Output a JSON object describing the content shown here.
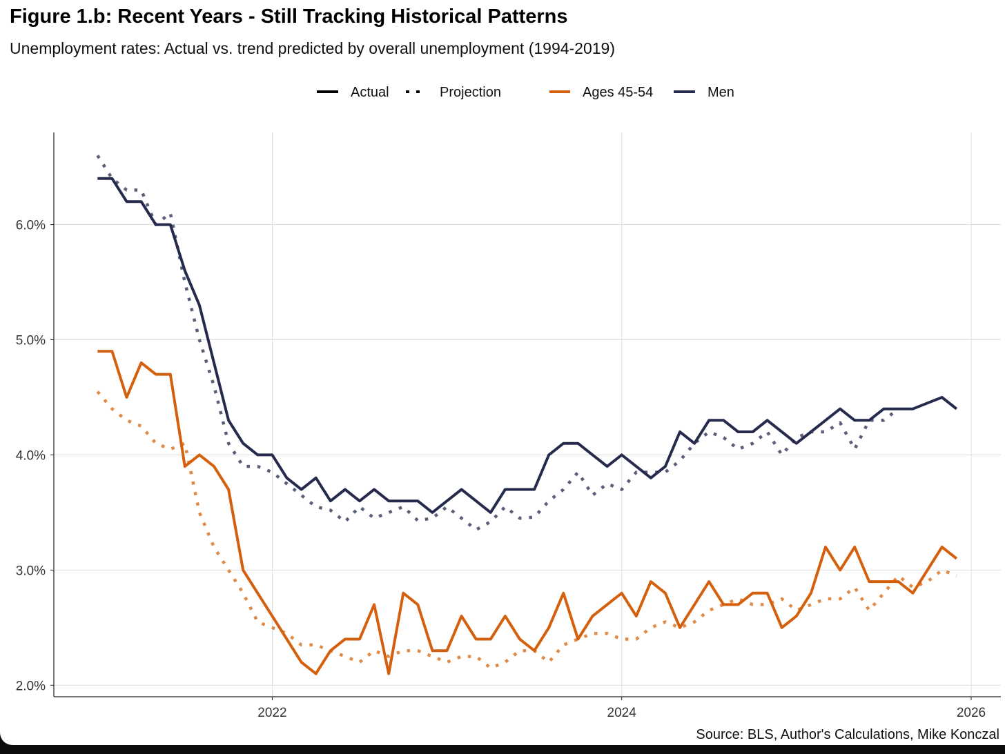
{
  "header": {
    "title": "Figure 1.b: Recent Years - Still Tracking Historical Patterns",
    "subtitle": "Unemployment rates: Actual vs. trend predicted by overall unemployment (1994-2019)"
  },
  "legend": {
    "line_types": [
      {
        "label": "Actual",
        "style": "solid"
      },
      {
        "label": "Projection",
        "style": "dotted"
      }
    ],
    "groups": [
      {
        "label": "Ages 45-54",
        "color": "#d4600e"
      },
      {
        "label": "Men",
        "color": "#262b4e"
      }
    ]
  },
  "source": "Source: BLS, Author's Calculations, Mike Konczal",
  "chart_data": {
    "type": "line",
    "title": "Figure 1.b: Recent Years - Still Tracking Historical Patterns",
    "subtitle": "Unemployment rates: Actual vs. trend predicted by overall unemployment (1994-2019)",
    "xlabel": "",
    "ylabel": "",
    "x_start": 2021.0,
    "x_step": 0.08333,
    "xlim": [
      2020.75,
      2026.17
    ],
    "ylim": [
      1.9,
      6.8
    ],
    "x_ticks": [
      2022,
      2024,
      2026
    ],
    "x_tick_labels": [
      "2022",
      "2024",
      "2026"
    ],
    "y_ticks": [
      2.0,
      3.0,
      4.0,
      5.0,
      6.0
    ],
    "y_tick_labels": [
      "2.0%",
      "3.0%",
      "4.0%",
      "5.0%",
      "6.0%"
    ],
    "grid": true,
    "legend_position": "top",
    "series": [
      {
        "name": "Men - Projection",
        "group": "Men",
        "style": "dotted",
        "color": "#5a5f78",
        "values": [
          6.6,
          6.4,
          6.3,
          6.3,
          6.0,
          6.1,
          5.5,
          5.0,
          4.6,
          4.1,
          3.9,
          3.9,
          3.85,
          3.75,
          3.65,
          3.55,
          3.52,
          3.42,
          3.55,
          3.45,
          3.5,
          3.55,
          3.43,
          3.45,
          3.55,
          3.45,
          3.35,
          3.42,
          3.55,
          3.45,
          3.46,
          3.6,
          3.7,
          3.85,
          3.65,
          3.75,
          3.7,
          3.85,
          3.85,
          3.85,
          3.95,
          4.1,
          4.2,
          4.15,
          4.05,
          4.1,
          4.2,
          4.0,
          4.15,
          4.2,
          4.2,
          4.28,
          4.05,
          4.3,
          4.3,
          4.4
        ]
      },
      {
        "name": "Men - Actual",
        "group": "Men",
        "style": "solid",
        "color": "#262b4e",
        "values": [
          6.4,
          6.4,
          6.2,
          6.2,
          6.0,
          6.0,
          5.6,
          5.3,
          4.8,
          4.3,
          4.1,
          4.0,
          4.0,
          3.8,
          3.7,
          3.8,
          3.6,
          3.7,
          3.6,
          3.7,
          3.6,
          3.6,
          3.6,
          3.5,
          3.6,
          3.7,
          3.6,
          3.5,
          3.7,
          3.7,
          3.7,
          4.0,
          4.1,
          4.1,
          4.0,
          3.9,
          4.0,
          3.9,
          3.8,
          3.9,
          4.2,
          4.1,
          4.3,
          4.3,
          4.2,
          4.2,
          4.3,
          4.2,
          4.1,
          4.2,
          4.3,
          4.4,
          4.3,
          4.3,
          4.4,
          4.4,
          4.4,
          4.45,
          4.5,
          4.4
        ]
      },
      {
        "name": "Ages 45-54 - Projection",
        "group": "Ages 45-54",
        "style": "dotted",
        "color": "#e08a48",
        "values": [
          4.55,
          4.4,
          4.3,
          4.25,
          4.1,
          4.05,
          4.1,
          3.5,
          3.2,
          3.0,
          2.8,
          2.55,
          2.5,
          2.45,
          2.35,
          2.35,
          2.3,
          2.25,
          2.2,
          2.3,
          2.25,
          2.3,
          2.3,
          2.25,
          2.2,
          2.25,
          2.25,
          2.15,
          2.2,
          2.3,
          2.3,
          2.2,
          2.35,
          2.4,
          2.45,
          2.45,
          2.4,
          2.4,
          2.5,
          2.55,
          2.5,
          2.55,
          2.65,
          2.7,
          2.75,
          2.7,
          2.7,
          2.75,
          2.65,
          2.7,
          2.75,
          2.75,
          2.85,
          2.65,
          2.8,
          2.95,
          2.85,
          2.9,
          3.0,
          2.95
        ]
      },
      {
        "name": "Ages 45-54 - Actual",
        "group": "Ages 45-54",
        "style": "solid",
        "color": "#d4600e",
        "values": [
          4.9,
          4.9,
          4.5,
          4.8,
          4.7,
          4.7,
          3.9,
          4.0,
          3.9,
          3.7,
          3.0,
          2.8,
          2.6,
          2.4,
          2.2,
          2.1,
          2.3,
          2.4,
          2.4,
          2.7,
          2.1,
          2.8,
          2.7,
          2.3,
          2.3,
          2.6,
          2.4,
          2.4,
          2.6,
          2.4,
          2.3,
          2.5,
          2.8,
          2.4,
          2.6,
          2.7,
          2.8,
          2.6,
          2.9,
          2.8,
          2.5,
          2.7,
          2.9,
          2.7,
          2.7,
          2.8,
          2.8,
          2.5,
          2.6,
          2.8,
          3.2,
          3.0,
          3.2,
          2.9,
          2.9,
          2.9,
          2.8,
          3.0,
          3.2,
          3.1
        ]
      }
    ]
  }
}
